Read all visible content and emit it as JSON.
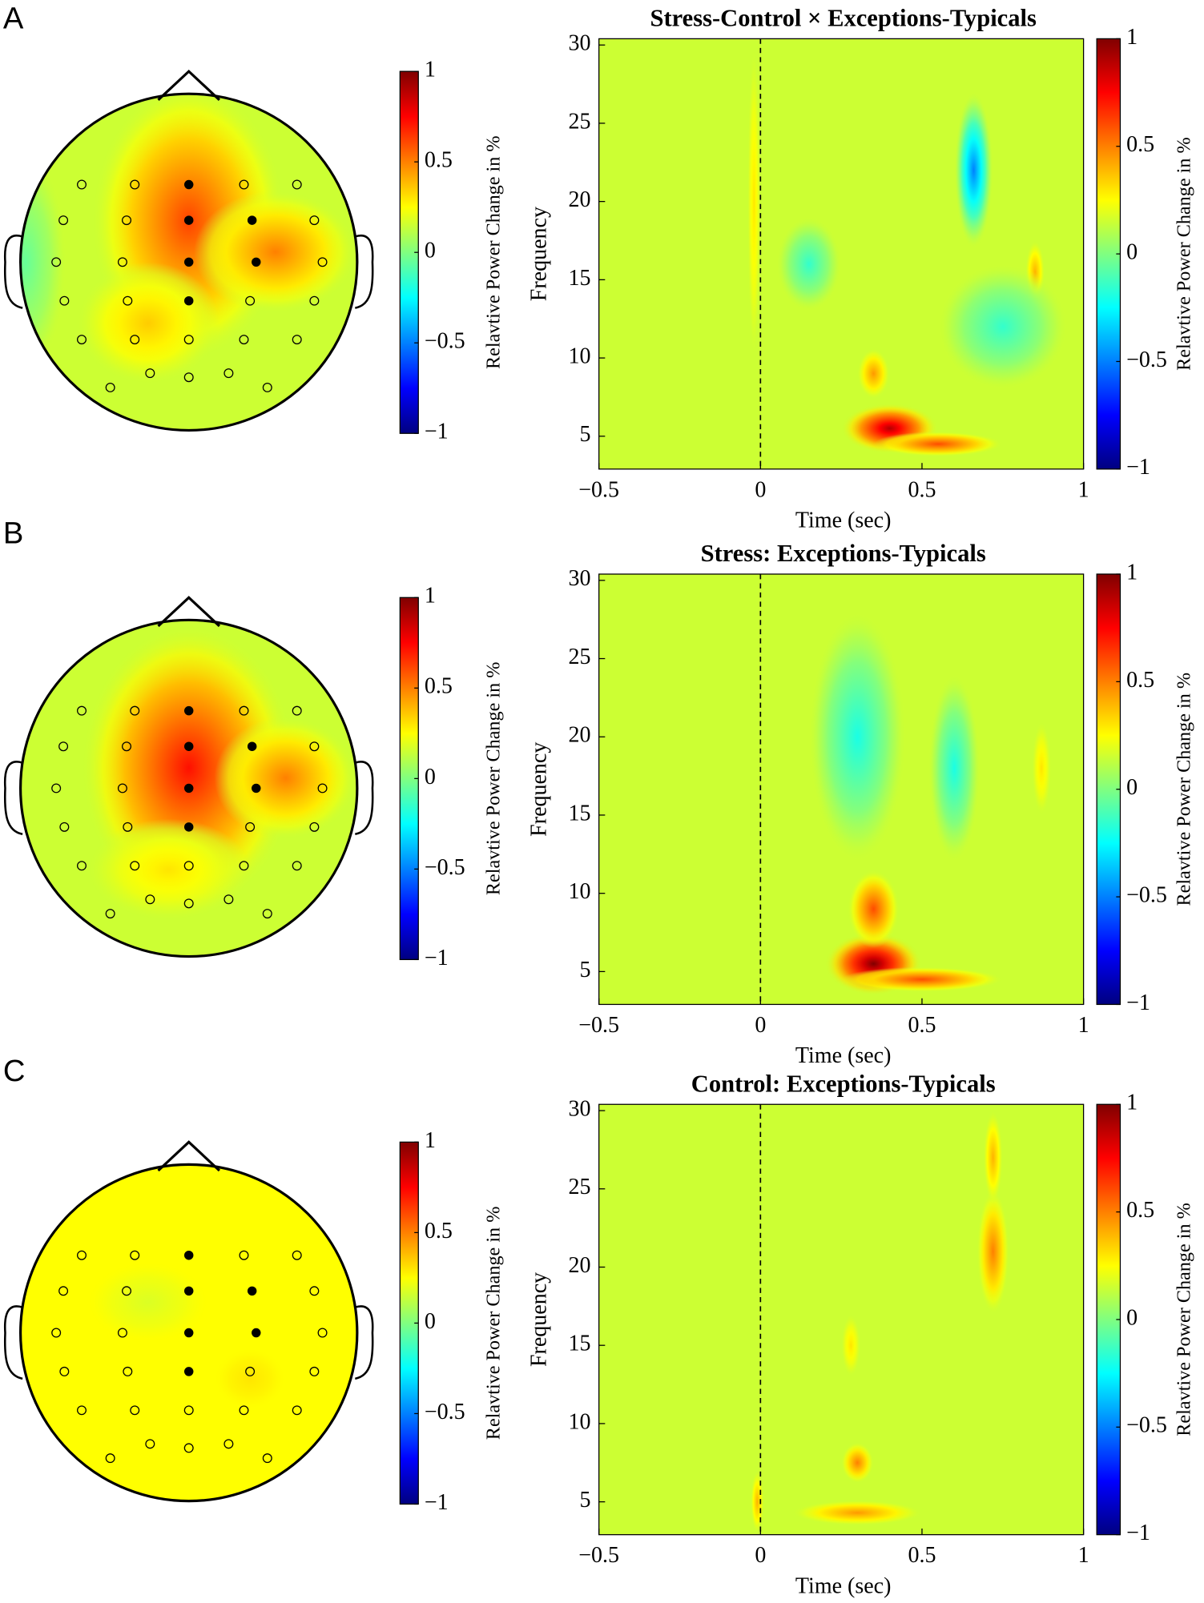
{
  "panel_labels": [
    "A",
    "B",
    "C"
  ],
  "chart_data": [
    {
      "type": "topomap",
      "background_value": 0.15,
      "values": [
        0.62,
        0.5,
        0.35,
        -0.05
      ],
      "clim": [
        -1,
        1
      ],
      "cticks": [
        1,
        0.5,
        0,
        {
          "value": -0.5,
          "label": "−0.5"
        },
        {
          "value": -1,
          "label": "−1"
        }
      ],
      "colorbar_label": "Relavtive Power Change in %"
    },
    {
      "type": "heatmap",
      "title": "Stress-Control × Exceptions-Typicals",
      "xlabel": "Time (sec)",
      "ylabel": "Frequency",
      "xlim": [
        -0.5,
        1
      ],
      "xticks": [
        {
          "value": -0.5,
          "label": "−0.5"
        },
        0,
        0.5,
        1
      ],
      "ylim": [
        2.9,
        30.4
      ],
      "yticks": [
        5,
        10,
        15,
        20,
        25,
        30
      ],
      "marker_x": 0,
      "background_value": 0.15,
      "blobs": [
        {
          "t": 0.4,
          "f": 5.5,
          "value": 0.9,
          "dt": 0.15,
          "df": 1.6
        },
        {
          "t": 0.55,
          "f": 4.5,
          "value": 0.6,
          "dt": 0.2,
          "df": 0.8
        },
        {
          "t": 0.35,
          "f": 9,
          "value": 0.45,
          "dt": 0.05,
          "df": 1.6
        },
        {
          "t": 0.66,
          "f": 22,
          "value": -0.5,
          "dt": 0.06,
          "df": 5
        },
        {
          "t": 0.85,
          "f": 15.5,
          "value": 0.4,
          "dt": 0.03,
          "df": 2
        },
        {
          "t": 0.75,
          "f": 12,
          "value": -0.15,
          "dt": 0.2,
          "df": 4
        },
        {
          "t": 0.15,
          "f": 16,
          "value": -0.15,
          "dt": 0.1,
          "df": 3
        },
        {
          "t": -0.02,
          "f": 20,
          "value": 0.3,
          "dt": 0.02,
          "df": 10
        }
      ],
      "clim": [
        -1,
        1
      ],
      "cticks": [
        1,
        0.5,
        0,
        {
          "value": -0.5,
          "label": "−0.5"
        },
        {
          "value": -1,
          "label": "−1"
        }
      ],
      "colorbar_label": "Relavtive Power Change in %"
    },
    {
      "type": "topomap",
      "background_value": 0.15,
      "values": [
        0.72,
        0.5,
        0.3
      ],
      "clim": [
        -1,
        1
      ],
      "cticks": [
        1,
        0.5,
        0,
        {
          "value": -0.5,
          "label": "−0.5"
        },
        {
          "value": -1,
          "label": "−1"
        }
      ],
      "colorbar_label": "Relavtive Power Change in %"
    },
    {
      "type": "heatmap",
      "title": "Stress: Exceptions-Typicals",
      "xlabel": "Time (sec)",
      "ylabel": "Frequency",
      "xlim": [
        -0.5,
        1
      ],
      "xticks": [
        {
          "value": -0.5,
          "label": "−0.5"
        },
        0,
        0.5,
        1
      ],
      "ylim": [
        2.9,
        30.4
      ],
      "yticks": [
        5,
        10,
        15,
        20,
        25,
        30
      ],
      "marker_x": 0,
      "background_value": 0.15,
      "blobs": [
        {
          "t": 0.35,
          "f": 5.5,
          "value": 1.0,
          "dt": 0.15,
          "df": 2
        },
        {
          "t": 0.35,
          "f": 9,
          "value": 0.6,
          "dt": 0.08,
          "df": 2.5
        },
        {
          "t": 0.5,
          "f": 4.5,
          "value": 0.6,
          "dt": 0.25,
          "df": 0.8
        },
        {
          "t": 0.3,
          "f": 20,
          "value": -0.2,
          "dt": 0.15,
          "df": 8
        },
        {
          "t": 0.6,
          "f": 18,
          "value": -0.2,
          "dt": 0.08,
          "df": 6
        },
        {
          "t": 0.87,
          "f": 18,
          "value": 0.3,
          "dt": 0.03,
          "df": 3
        }
      ],
      "clim": [
        -1,
        1
      ],
      "cticks": [
        1,
        0.5,
        0,
        {
          "value": -0.5,
          "label": "−0.5"
        },
        {
          "value": -1,
          "label": "−1"
        }
      ],
      "colorbar_label": "Relavtive Power Change in %"
    },
    {
      "type": "topomap",
      "background_value": 0.25,
      "values": [
        0.3,
        0.18
      ],
      "clim": [
        -1,
        1
      ],
      "cticks": [
        1,
        0.5,
        0,
        {
          "value": -0.5,
          "label": "−0.5"
        },
        {
          "value": -1,
          "label": "−1"
        }
      ],
      "colorbar_label": "Relavtive Power Change in %"
    },
    {
      "type": "heatmap",
      "title": "Control: Exceptions-Typicals",
      "xlabel": "Time (sec)",
      "ylabel": "Frequency",
      "xlim": [
        -0.5,
        1
      ],
      "xticks": [
        {
          "value": -0.5,
          "label": "−0.5"
        },
        0,
        0.5,
        1
      ],
      "ylim": [
        2.9,
        30.4
      ],
      "yticks": [
        5,
        10,
        15,
        20,
        25,
        30
      ],
      "marker_x": 0,
      "background_value": 0.15,
      "blobs": [
        {
          "t": 0.3,
          "f": 7.5,
          "value": 0.5,
          "dt": 0.05,
          "df": 1.3
        },
        {
          "t": 0.3,
          "f": 4.3,
          "value": 0.45,
          "dt": 0.2,
          "df": 0.8
        },
        {
          "t": 0.72,
          "f": 21,
          "value": 0.5,
          "dt": 0.05,
          "df": 4
        },
        {
          "t": 0.72,
          "f": 27,
          "value": 0.4,
          "dt": 0.03,
          "df": 3
        },
        {
          "t": 0.28,
          "f": 15,
          "value": 0.3,
          "dt": 0.03,
          "df": 2
        },
        {
          "t": -0.01,
          "f": 5,
          "value": 0.4,
          "dt": 0.02,
          "df": 2
        }
      ],
      "clim": [
        -1,
        1
      ],
      "cticks": [
        1,
        0.5,
        0,
        {
          "value": -0.5,
          "label": "−0.5"
        },
        {
          "value": -1,
          "label": "−1"
        }
      ],
      "colorbar_label": "Relavtive Power Change in %"
    }
  ]
}
